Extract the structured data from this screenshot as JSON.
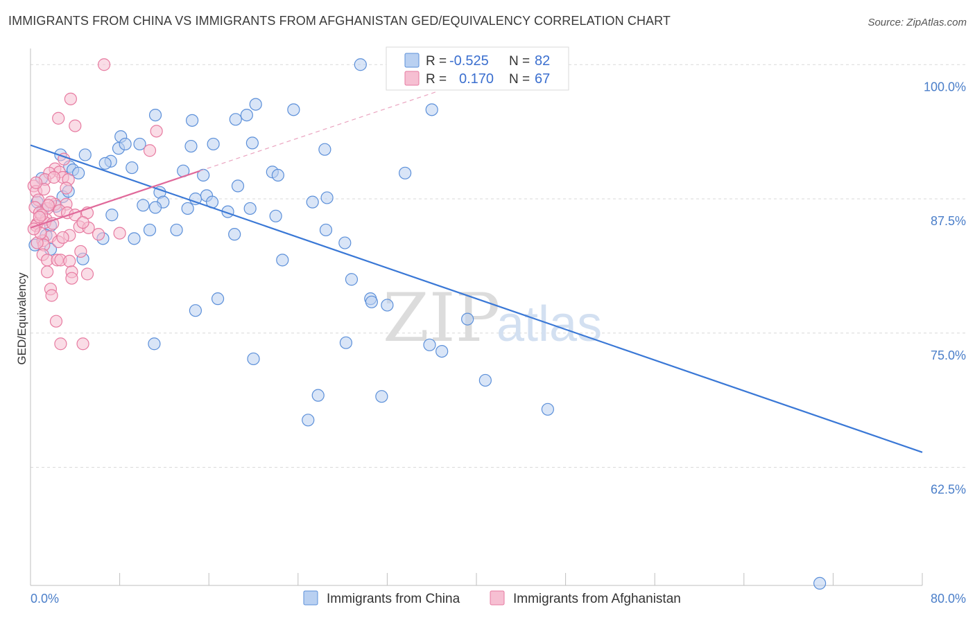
{
  "title": "IMMIGRANTS FROM CHINA VS IMMIGRANTS FROM AFGHANISTAN GED/EQUIVALENCY CORRELATION CHART",
  "source": "Source: ZipAtlas.com",
  "watermark": {
    "zip": "ZIP",
    "atlas": "atlas"
  },
  "colors": {
    "china": "#5b8fd9",
    "china_fill": "#b9d0f1",
    "afghanistan": "#e77aa0",
    "afghanistan_fill": "#f6bfd2",
    "axis_text": "#4a7ec9",
    "grid": "#d9d9d9"
  },
  "legend_top": {
    "rows": [
      {
        "r_label": "R =",
        "r_value": "-0.525",
        "n_label": "N =",
        "n_value": "82"
      },
      {
        "r_label": "R =",
        "r_value": "0.170",
        "n_label": "N =",
        "n_value": "67"
      }
    ]
  },
  "chart_data": {
    "type": "scatter",
    "title": "IMMIGRANTS FROM CHINA VS IMMIGRANTS FROM AFGHANISTAN GED/EQUIVALENCY CORRELATION CHART",
    "xlabel": "",
    "ylabel": "GED/Equivalency",
    "xlim": [
      0,
      80
    ],
    "ylim": [
      51.5,
      101.5
    ],
    "x_tick_labels": [
      "0.0%",
      "80.0%"
    ],
    "y_ticks": [
      62.5,
      75.0,
      87.5,
      100.0
    ],
    "y_tick_labels": [
      "62.5%",
      "75.0%",
      "87.5%",
      "100.0%"
    ],
    "grid": true,
    "legend_position": "bottom-center",
    "series": [
      {
        "name": "Immigrants from China",
        "r": -0.525,
        "n": 82,
        "trend": {
          "x": [
            0,
            80
          ],
          "y": [
            92.5,
            63.9
          ]
        },
        "points": [
          [
            29.6,
            100.0
          ],
          [
            33.0,
            100.0
          ],
          [
            20.2,
            96.3
          ],
          [
            23.6,
            95.8
          ],
          [
            36.0,
            95.8
          ],
          [
            11.2,
            95.3
          ],
          [
            19.4,
            95.3
          ],
          [
            14.5,
            94.8
          ],
          [
            18.4,
            94.9
          ],
          [
            8.1,
            93.3
          ],
          [
            7.9,
            92.2
          ],
          [
            8.5,
            92.6
          ],
          [
            9.8,
            92.6
          ],
          [
            14.4,
            92.4
          ],
          [
            16.4,
            92.6
          ],
          [
            19.9,
            92.7
          ],
          [
            26.4,
            92.1
          ],
          [
            2.7,
            91.6
          ],
          [
            4.9,
            91.6
          ],
          [
            7.2,
            91.0
          ],
          [
            6.7,
            90.8
          ],
          [
            3.5,
            90.5
          ],
          [
            3.8,
            90.2
          ],
          [
            9.1,
            90.4
          ],
          [
            13.7,
            90.1
          ],
          [
            21.7,
            90.0
          ],
          [
            18.6,
            88.7
          ],
          [
            4.3,
            89.9
          ],
          [
            22.2,
            89.7
          ],
          [
            15.5,
            89.7
          ],
          [
            33.6,
            89.9
          ],
          [
            11.6,
            88.1
          ],
          [
            11.9,
            87.2
          ],
          [
            15.8,
            87.8
          ],
          [
            14.8,
            87.5
          ],
          [
            16.3,
            87.2
          ],
          [
            26.6,
            87.6
          ],
          [
            25.3,
            87.2
          ],
          [
            7.3,
            86.0
          ],
          [
            10.1,
            86.9
          ],
          [
            11.2,
            86.7
          ],
          [
            14.1,
            86.6
          ],
          [
            17.7,
            86.3
          ],
          [
            19.7,
            86.6
          ],
          [
            22.0,
            85.9
          ],
          [
            2.3,
            86.8
          ],
          [
            2.9,
            87.7
          ],
          [
            3.4,
            88.2
          ],
          [
            1.1,
            86.5
          ],
          [
            1.8,
            85.0
          ],
          [
            10.7,
            84.6
          ],
          [
            13.1,
            84.6
          ],
          [
            18.3,
            84.2
          ],
          [
            26.5,
            84.6
          ],
          [
            28.2,
            83.4
          ],
          [
            6.5,
            83.8
          ],
          [
            9.3,
            83.8
          ],
          [
            1.8,
            82.8
          ],
          [
            4.7,
            81.9
          ],
          [
            22.6,
            81.8
          ],
          [
            28.8,
            80.0
          ],
          [
            16.8,
            78.2
          ],
          [
            30.5,
            78.2
          ],
          [
            30.6,
            77.9
          ],
          [
            32.0,
            77.6
          ],
          [
            14.8,
            77.1
          ],
          [
            39.2,
            76.3
          ],
          [
            11.1,
            74.0
          ],
          [
            28.3,
            74.1
          ],
          [
            35.8,
            73.9
          ],
          [
            36.9,
            73.3
          ],
          [
            20.0,
            72.6
          ],
          [
            40.8,
            70.6
          ],
          [
            25.8,
            69.2
          ],
          [
            31.5,
            69.1
          ],
          [
            24.9,
            66.9
          ],
          [
            46.4,
            67.9
          ],
          [
            70.8,
            51.7
          ],
          [
            1.0,
            89.4
          ],
          [
            0.6,
            87.2
          ],
          [
            1.4,
            84.1
          ],
          [
            0.4,
            83.2
          ]
        ]
      },
      {
        "name": "Immigrants from Afghanistan",
        "r": 0.17,
        "n": 67,
        "trend": {
          "x": [
            0,
            15.2
          ],
          "y": [
            84.8,
            90.1
          ]
        },
        "trend_dashed": {
          "x": [
            15.2,
            36.5
          ],
          "y": [
            90.1,
            97.5
          ]
        },
        "points": [
          [
            6.6,
            100.0
          ],
          [
            3.6,
            96.8
          ],
          [
            2.5,
            95.0
          ],
          [
            4.0,
            94.3
          ],
          [
            11.3,
            93.8
          ],
          [
            10.7,
            92.0
          ],
          [
            2.2,
            90.3
          ],
          [
            2.6,
            90.0
          ],
          [
            2.9,
            89.5
          ],
          [
            1.7,
            89.9
          ],
          [
            3.4,
            89.3
          ],
          [
            1.3,
            89.3
          ],
          [
            0.3,
            88.7
          ],
          [
            0.5,
            88.2
          ],
          [
            1.2,
            88.4
          ],
          [
            0.7,
            87.4
          ],
          [
            2.2,
            87.0
          ],
          [
            3.2,
            87.0
          ],
          [
            1.5,
            86.6
          ],
          [
            0.4,
            86.7
          ],
          [
            0.8,
            86.2
          ],
          [
            2.6,
            86.4
          ],
          [
            3.3,
            86.2
          ],
          [
            4.0,
            86.0
          ],
          [
            5.1,
            86.2
          ],
          [
            1.4,
            85.6
          ],
          [
            0.6,
            85.2
          ],
          [
            0.5,
            85.0
          ],
          [
            1.3,
            85.3
          ],
          [
            2.0,
            85.2
          ],
          [
            4.4,
            84.9
          ],
          [
            5.2,
            84.8
          ],
          [
            4.7,
            85.3
          ],
          [
            3.5,
            84.1
          ],
          [
            6.1,
            84.2
          ],
          [
            8.0,
            84.3
          ],
          [
            1.8,
            84.0
          ],
          [
            2.5,
            83.5
          ],
          [
            1.1,
            83.6
          ],
          [
            1.2,
            83.2
          ],
          [
            0.6,
            83.4
          ],
          [
            0.9,
            84.3
          ],
          [
            4.5,
            82.6
          ],
          [
            1.1,
            82.3
          ],
          [
            1.5,
            81.8
          ],
          [
            2.4,
            81.8
          ],
          [
            2.7,
            81.8
          ],
          [
            3.5,
            81.7
          ],
          [
            1.5,
            80.7
          ],
          [
            3.7,
            80.7
          ],
          [
            5.1,
            80.5
          ],
          [
            3.7,
            80.1
          ],
          [
            1.8,
            79.1
          ],
          [
            1.9,
            78.5
          ],
          [
            2.3,
            76.1
          ],
          [
            2.7,
            74.0
          ],
          [
            4.7,
            74.0
          ],
          [
            0.3,
            84.7
          ],
          [
            1.0,
            86.0
          ],
          [
            1.8,
            87.2
          ],
          [
            3.2,
            88.5
          ],
          [
            0.5,
            89.0
          ],
          [
            2.1,
            89.5
          ],
          [
            3.0,
            91.2
          ],
          [
            0.8,
            85.8
          ],
          [
            1.6,
            86.9
          ],
          [
            2.9,
            83.9
          ]
        ]
      }
    ]
  },
  "legend_bottom": {
    "items": [
      {
        "label": "Immigrants from China"
      },
      {
        "label": "Immigrants from Afghanistan"
      }
    ]
  }
}
